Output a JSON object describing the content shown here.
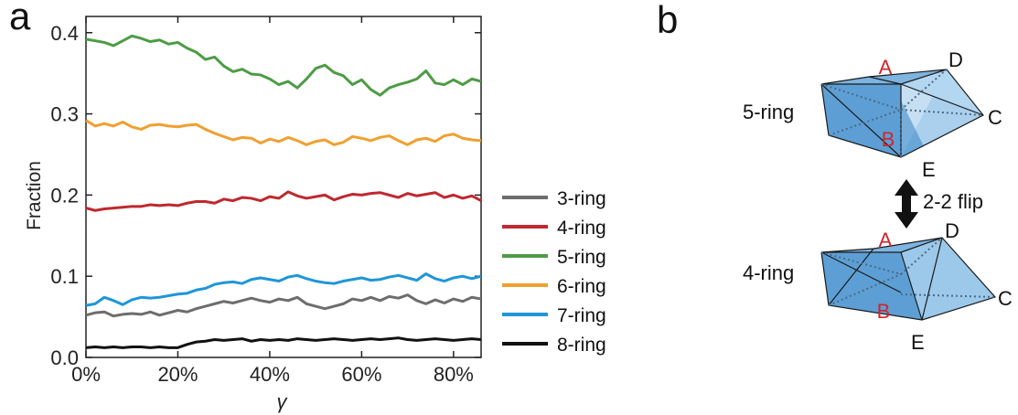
{
  "panels": {
    "a": "a",
    "b": "b"
  },
  "chart_data": {
    "type": "line",
    "xlabel": "γ",
    "ylabel": "Fraction",
    "xlim": [
      0,
      86
    ],
    "ylim": [
      0,
      0.42
    ],
    "x_ticks": [
      0,
      20,
      40,
      60,
      80
    ],
    "x_tick_labels": [
      "0%",
      "20%",
      "40%",
      "60%",
      "80%"
    ],
    "y_ticks": [
      0.0,
      0.1,
      0.2,
      0.3,
      0.4
    ],
    "y_tick_labels": [
      "0.0",
      "0.1",
      "0.2",
      "0.3",
      "0.4"
    ],
    "grid": false,
    "legend_position": "right-outside",
    "x": [
      0,
      2,
      4,
      6,
      8,
      10,
      12,
      14,
      16,
      18,
      20,
      22,
      24,
      26,
      28,
      30,
      32,
      34,
      36,
      38,
      40,
      42,
      44,
      46,
      48,
      50,
      52,
      54,
      56,
      58,
      60,
      62,
      64,
      66,
      68,
      70,
      72,
      74,
      76,
      78,
      80,
      82,
      84,
      86
    ],
    "series": [
      {
        "name": "3-ring",
        "color": "#6d6d6d",
        "values": [
          0.052,
          0.055,
          0.056,
          0.051,
          0.053,
          0.054,
          0.053,
          0.056,
          0.052,
          0.055,
          0.058,
          0.056,
          0.06,
          0.063,
          0.066,
          0.069,
          0.067,
          0.07,
          0.073,
          0.07,
          0.068,
          0.072,
          0.07,
          0.074,
          0.066,
          0.063,
          0.06,
          0.063,
          0.066,
          0.072,
          0.07,
          0.074,
          0.07,
          0.075,
          0.073,
          0.077,
          0.07,
          0.066,
          0.071,
          0.067,
          0.072,
          0.069,
          0.074,
          0.072
        ]
      },
      {
        "name": "4-ring",
        "color": "#c0282e",
        "values": [
          0.184,
          0.181,
          0.183,
          0.184,
          0.185,
          0.186,
          0.186,
          0.188,
          0.187,
          0.188,
          0.187,
          0.19,
          0.192,
          0.192,
          0.19,
          0.195,
          0.193,
          0.197,
          0.196,
          0.193,
          0.198,
          0.196,
          0.204,
          0.199,
          0.196,
          0.198,
          0.2,
          0.194,
          0.198,
          0.201,
          0.2,
          0.202,
          0.203,
          0.2,
          0.197,
          0.202,
          0.199,
          0.201,
          0.203,
          0.197,
          0.2,
          0.196,
          0.199,
          0.193
        ]
      },
      {
        "name": "5-ring",
        "color": "#4d9c45",
        "values": [
          0.392,
          0.39,
          0.388,
          0.384,
          0.39,
          0.396,
          0.393,
          0.389,
          0.391,
          0.386,
          0.388,
          0.381,
          0.376,
          0.367,
          0.37,
          0.359,
          0.352,
          0.355,
          0.349,
          0.348,
          0.343,
          0.336,
          0.34,
          0.332,
          0.343,
          0.356,
          0.36,
          0.351,
          0.347,
          0.336,
          0.342,
          0.33,
          0.323,
          0.332,
          0.336,
          0.339,
          0.343,
          0.353,
          0.338,
          0.336,
          0.342,
          0.336,
          0.343,
          0.34
        ]
      },
      {
        "name": "6-ring",
        "color": "#f0a030",
        "values": [
          0.292,
          0.285,
          0.288,
          0.285,
          0.29,
          0.284,
          0.281,
          0.286,
          0.287,
          0.285,
          0.284,
          0.286,
          0.287,
          0.281,
          0.276,
          0.272,
          0.268,
          0.271,
          0.27,
          0.264,
          0.269,
          0.266,
          0.271,
          0.267,
          0.262,
          0.266,
          0.268,
          0.262,
          0.265,
          0.272,
          0.27,
          0.267,
          0.271,
          0.273,
          0.267,
          0.262,
          0.268,
          0.27,
          0.266,
          0.273,
          0.275,
          0.27,
          0.268,
          0.267
        ]
      },
      {
        "name": "7-ring",
        "color": "#1e96d9",
        "values": [
          0.064,
          0.066,
          0.074,
          0.07,
          0.065,
          0.071,
          0.074,
          0.073,
          0.074,
          0.076,
          0.078,
          0.079,
          0.083,
          0.085,
          0.09,
          0.092,
          0.093,
          0.091,
          0.096,
          0.098,
          0.096,
          0.094,
          0.099,
          0.101,
          0.097,
          0.094,
          0.092,
          0.091,
          0.094,
          0.096,
          0.098,
          0.095,
          0.096,
          0.099,
          0.101,
          0.098,
          0.095,
          0.103,
          0.097,
          0.094,
          0.098,
          0.1,
          0.097,
          0.1
        ]
      },
      {
        "name": "8-ring",
        "color": "#111111",
        "values": [
          0.012,
          0.013,
          0.012,
          0.013,
          0.012,
          0.013,
          0.013,
          0.012,
          0.013,
          0.012,
          0.012,
          0.016,
          0.019,
          0.02,
          0.022,
          0.021,
          0.022,
          0.023,
          0.02,
          0.022,
          0.021,
          0.022,
          0.021,
          0.023,
          0.022,
          0.021,
          0.022,
          0.023,
          0.022,
          0.021,
          0.022,
          0.023,
          0.022,
          0.023,
          0.024,
          0.022,
          0.021,
          0.022,
          0.023,
          0.022,
          0.021,
          0.022,
          0.023,
          0.022
        ]
      }
    ]
  },
  "diagram": {
    "top_label": "5-ring",
    "bottom_label": "4-ring",
    "flip_label": "2-2 flip",
    "vertex_labels": {
      "A": "A",
      "B": "B",
      "C": "C",
      "D": "D",
      "E": "E"
    },
    "colors": {
      "dark_face": "#5d9fd5",
      "mid_face": "#8fc0e6",
      "light_face": "#c4e1f5",
      "red_label": "#d0262b",
      "edge": "#1a1a1a"
    }
  }
}
